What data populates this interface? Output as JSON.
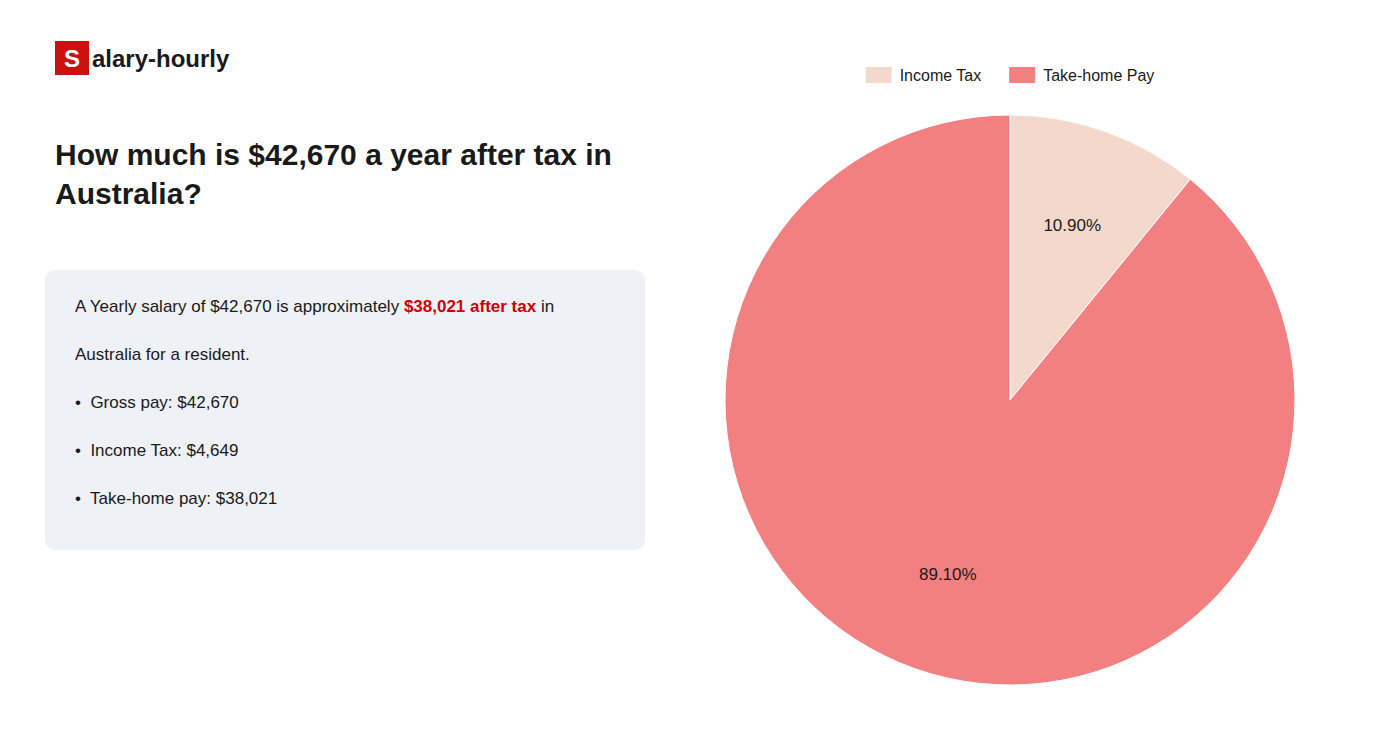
{
  "chart_data": {
    "type": "pie",
    "title": "How much is $42,670 a year after tax in Australia?",
    "annotations": [
      [
        {
          "text": "S",
          "color": "#cc1111"
        },
        {
          "text": "alary-hourly"
        }
      ],
      [
        {
          "text": "A Yearly salary of $42,670 is approximately "
        },
        {
          "text": "$38,021 after tax",
          "color": "#cc0000"
        },
        {
          "text": " in"
        }
      ],
      [
        {
          "text": "Australia for a resident."
        }
      ],
      [
        {
          "text": "•  Gross pay: $42,670"
        }
      ],
      [
        {
          "text": "•  Income Tax: $4,649"
        }
      ],
      [
        {
          "text": "•  Take-home pay: $38,021"
        }
      ]
    ],
    "categories": [
      "Income Tax",
      "Take-home Pay"
    ],
    "values": [
      10.9,
      89.1
    ],
    "value_labels": [
      "10.90%",
      "89.10%"
    ],
    "colors": [
      "#f5d8cc",
      "#f28080"
    ],
    "data_labels": true,
    "legend": "top"
  }
}
